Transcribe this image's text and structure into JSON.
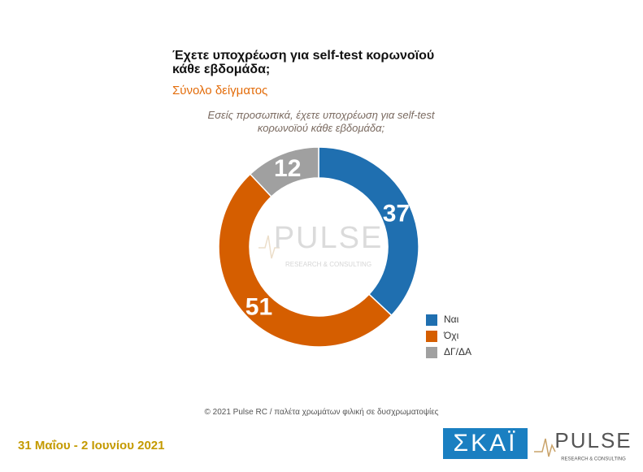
{
  "chart_data": {
    "type": "donut",
    "title": "Έχετε υποχρέωση για self-test κορωνοϊού κάθε εβδομάδα;",
    "subtitle": "Σύνολο δείγματος",
    "question": "Εσείς προσωπικά, έχετε υποχρέωση για self-test κορωνοϊού κάθε εβδομάδα;",
    "categories": [
      "Ναι",
      "Όχι",
      "ΔΓ/ΔΑ"
    ],
    "values": [
      37,
      51,
      12
    ],
    "colors": [
      "#1f6fb0",
      "#d55e00",
      "#a0a0a0"
    ],
    "watermark": "PULSE",
    "watermark_tagline": "RESEARCH & CONSULTING"
  },
  "footer": {
    "source": "© 2021 Pulse RC  /  παλέτα χρωμάτων φιλική σε δυσχρωματοψίες",
    "date": "31 Μαΐου - 2 Ιουνίου 2021",
    "logo_skai": "ΣΚΑΪ",
    "logo_pulse": "PULSE",
    "logo_pulse_tagline": "RESEARCH & CONSULTING"
  }
}
